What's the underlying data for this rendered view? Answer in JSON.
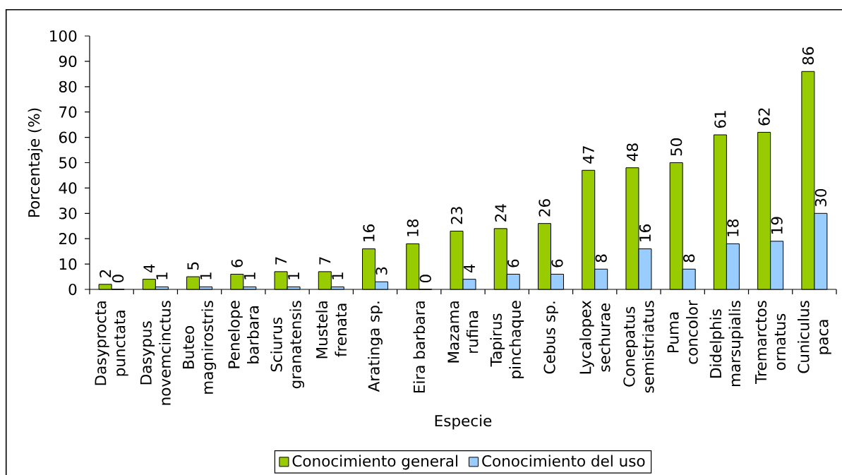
{
  "chart_data": {
    "type": "bar",
    "xlabel": "Especie",
    "ylabel": "Porcentaje (%)",
    "categories": [
      "Dasyprocta punctata",
      "Dasypus novemcinctus",
      "Buteo magnirostris",
      "Penelope barbara",
      "Sciurus granatensis",
      "Mustela frenata",
      "Aratinga sp.",
      "Eira barbara",
      "Mazama rufina",
      "Tapirus pinchaque",
      "Cebus sp.",
      "Lycalopex sechurae",
      "Conepatus semistriatus",
      "Puma concolor",
      "Didelphis marsupialis",
      "Tremarctos ornatus",
      "Cuniculus paca"
    ],
    "series": [
      {
        "name": "Conocimiento general",
        "color": "#99cc00",
        "values": [
          2,
          4,
          5,
          6,
          7,
          7,
          16,
          18,
          23,
          24,
          26,
          47,
          48,
          50,
          61,
          62,
          86
        ]
      },
      {
        "name": "Conocimiento del uso",
        "color": "#99ccff",
        "values": [
          0,
          1,
          1,
          1,
          1,
          1,
          3,
          0,
          4,
          6,
          6,
          8,
          16,
          8,
          18,
          19,
          30
        ]
      }
    ],
    "ylim": [
      0,
      100
    ],
    "yticks": [
      0,
      10,
      20,
      30,
      40,
      50,
      60,
      70,
      80,
      90,
      100
    ],
    "data_labels": true,
    "legend": "bottom"
  }
}
